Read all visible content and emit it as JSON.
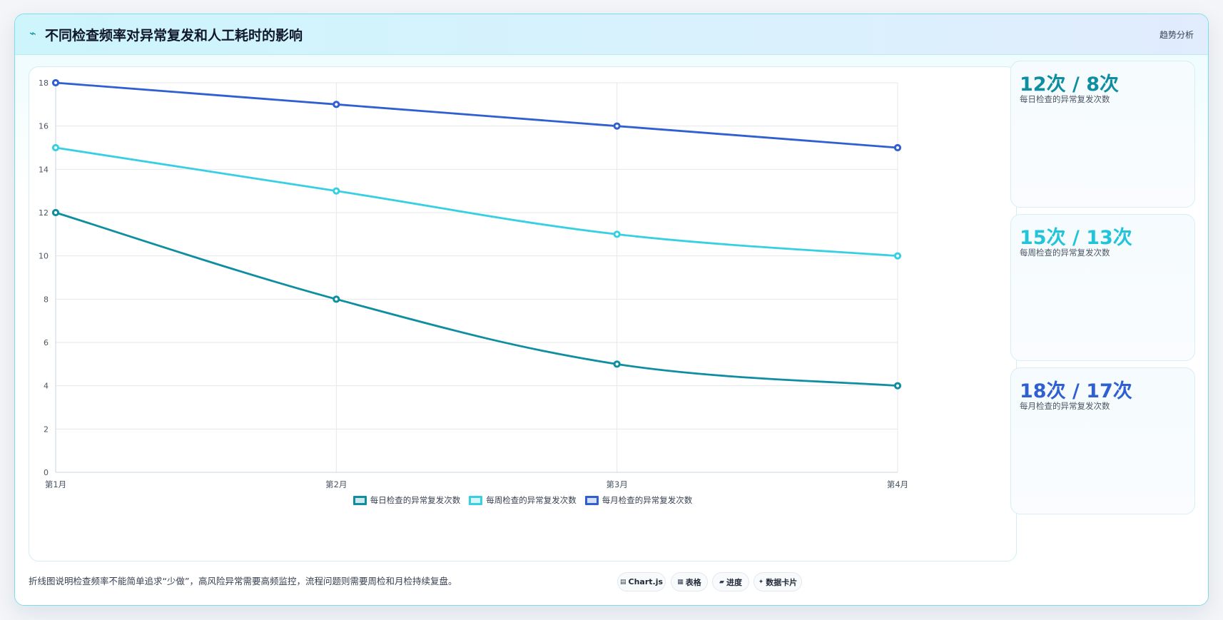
{
  "header": {
    "icon": "chart-line-icon",
    "title": "不同检查频率对异常复发和人工耗时的影响",
    "badge": "趋势分析"
  },
  "colors": {
    "daily": "#0e8ea0",
    "weekly": "#36d0e2",
    "monthly": "#2f5fd0"
  },
  "stats": [
    {
      "value": "12次 / 8次",
      "label": "每日检查的异常复发次数",
      "color": "#0e8ea0"
    },
    {
      "value": "15次 / 13次",
      "label": "每周检查的异常复发次数",
      "color": "#22c4da"
    },
    {
      "value": "18次 / 17次",
      "label": "每月检查的异常复发次数",
      "color": "#2f5fd0"
    }
  ],
  "footer": {
    "note": "折线图说明检查频率不能简单追求“少做”，高风险异常需要高频监控，流程问题则需要周检和月检持续复盘。",
    "pills": [
      {
        "icon": "chart-icon",
        "glyph": "▤",
        "label": "Chart.js"
      },
      {
        "icon": "table-icon",
        "glyph": "▦",
        "label": "表格"
      },
      {
        "icon": "progress-icon",
        "glyph": "▰",
        "label": "进度"
      },
      {
        "icon": "card-icon",
        "glyph": "✦",
        "label": "数据卡片"
      }
    ]
  },
  "chart_data": {
    "type": "line",
    "categories": [
      "第1月",
      "第2月",
      "第3月",
      "第4月"
    ],
    "yticks": [
      "0",
      "2",
      "4",
      "6",
      "8",
      "10",
      "12",
      "14",
      "16",
      "18"
    ],
    "ylim": [
      0,
      18
    ],
    "grid": true,
    "legend_position": "bottom",
    "series": [
      {
        "name": "每日检查的异常复发次数",
        "values": [
          12,
          8,
          5,
          4
        ],
        "color": "#0e8ea0"
      },
      {
        "name": "每周检查的异常复发次数",
        "values": [
          15,
          13,
          11,
          10
        ],
        "color": "#36d0e2"
      },
      {
        "name": "每月检查的异常复发次数",
        "values": [
          18,
          17,
          16,
          15
        ],
        "color": "#2f5fd0"
      }
    ]
  }
}
